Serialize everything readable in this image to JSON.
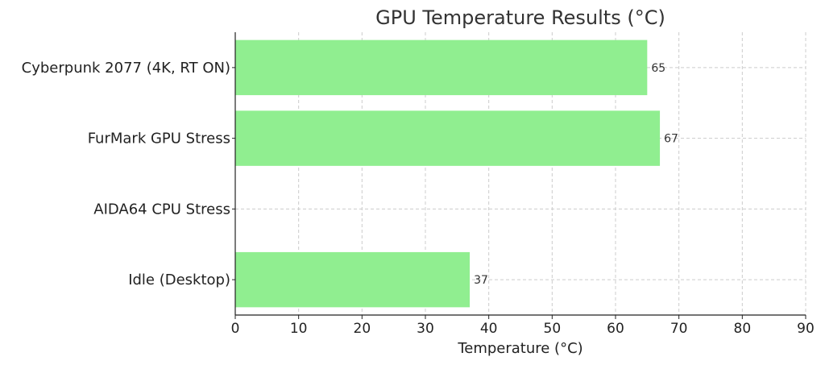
{
  "chart_data": {
    "type": "bar",
    "orientation": "horizontal",
    "title": "GPU Temperature Results (°C)",
    "xlabel": "Temperature (°C)",
    "ylabel": "",
    "categories": [
      "Cyberpunk 2077 (4K, RT ON)",
      "FurMark GPU Stress",
      "AIDA64 CPU Stress",
      "Idle (Desktop)"
    ],
    "values": [
      65,
      67,
      null,
      37
    ],
    "data_labels": [
      "65",
      "67",
      "",
      "37"
    ],
    "xlim": [
      0,
      90
    ],
    "xticks": [
      0,
      10,
      20,
      30,
      40,
      50,
      60,
      70,
      80,
      90
    ],
    "grid": true,
    "bar_color": "#90EE90"
  }
}
